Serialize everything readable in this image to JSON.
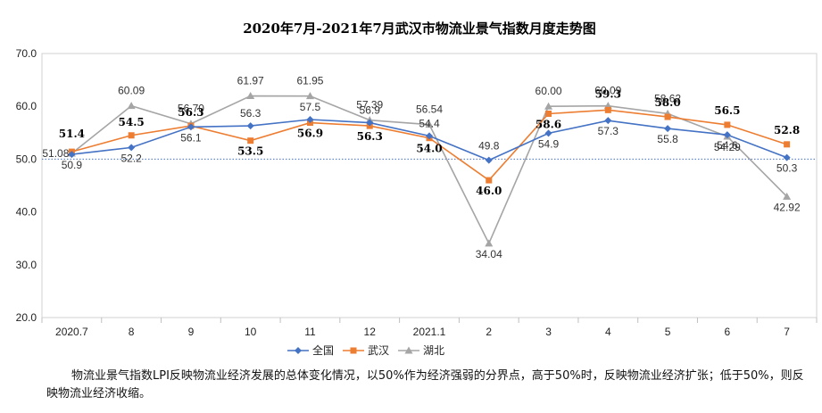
{
  "chart_data": {
    "type": "line",
    "title": "2020年7月-2021年7月武汉市物流业景气指数月度走势图",
    "categories": [
      "2020.7",
      "8",
      "9",
      "10",
      "11",
      "12",
      "2021.1",
      "2",
      "3",
      "4",
      "5",
      "6",
      "7"
    ],
    "y_tick_labels": [
      "20.0",
      "30.0",
      "40.0",
      "50.0",
      "60.0",
      "70.0"
    ],
    "ylim": [
      20,
      70
    ],
    "reference_line": 50,
    "grid": false,
    "legend_position": "bottom",
    "series": [
      {
        "name": "全国",
        "color": "#4472C4",
        "marker": "diamond",
        "values": [
          50.9,
          52.2,
          56.1,
          56.3,
          57.5,
          56.9,
          54.4,
          49.8,
          54.9,
          57.3,
          55.8,
          54.6,
          50.3
        ],
        "labels": [
          "50.9",
          "52.2",
          "56.1",
          "56.3",
          "57.5",
          "56.9",
          "54.4",
          "49.8",
          "54.9",
          "57.3",
          "55.8",
          "54.6",
          "50.3"
        ]
      },
      {
        "name": "武汉",
        "color": "#ED7D31",
        "marker": "square",
        "values": [
          51.4,
          54.5,
          56.3,
          53.5,
          56.9,
          56.3,
          54.0,
          46.0,
          58.6,
          59.3,
          58.0,
          56.5,
          52.8
        ],
        "labels": [
          "51.4",
          "54.5",
          "56.3",
          "53.5",
          "56.9",
          "56.3",
          "54.0",
          "46.0",
          "58.6",
          "59.3",
          "58.0",
          "56.5",
          "52.8"
        ]
      },
      {
        "name": "湖北",
        "color": "#A5A5A5",
        "marker": "triangle",
        "values": [
          51.08,
          60.09,
          56.7,
          61.97,
          61.95,
          57.39,
          56.54,
          34.04,
          60.0,
          60.09,
          58.62,
          54.29,
          42.92
        ],
        "labels": [
          "51.08",
          "60.09",
          "56.70",
          "61.97",
          "61.95",
          "57.39",
          "56.54",
          "34.04",
          "60.00",
          "60.09",
          "58.62",
          "54.29",
          "42.92"
        ]
      }
    ]
  },
  "note": "物流业景气指数LPI反映物流业经济发展的总体变化情况，以50%作为经济强弱的分界点，高于50%时，反映物流业经济扩张；低于50%，则反映物流业经济收缩。"
}
